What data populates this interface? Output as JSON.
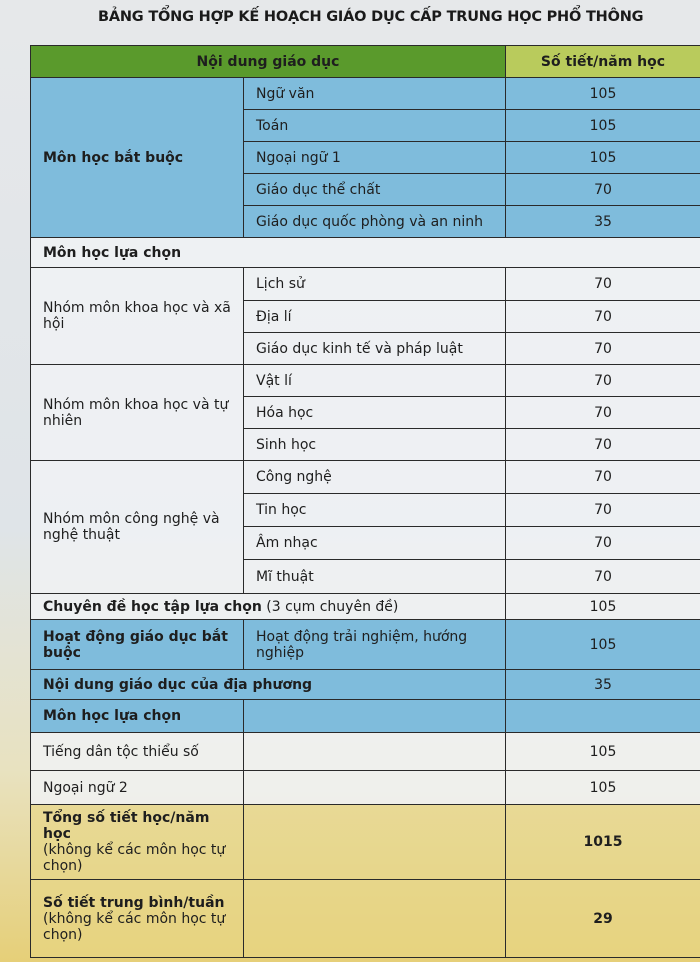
{
  "title": "BẢNG TỔNG HỢP KẾ HOẠCH GIÁO DỤC CẤP TRUNG HỌC PHỔ THÔNG",
  "header": {
    "content": "Nội dung giáo dục",
    "periods": "Số tiết/năm học"
  },
  "mandatory": {
    "label": "Môn học bắt buộc",
    "subjects": [
      {
        "name": "Ngữ văn",
        "periods": "105"
      },
      {
        "name": "Toán",
        "periods": "105"
      },
      {
        "name": "Ngoại ngữ 1",
        "periods": "105"
      },
      {
        "name": "Giáo dục thể chất",
        "periods": "70"
      },
      {
        "name": "Giáo dục quốc phòng và an ninh",
        "periods": "35"
      }
    ]
  },
  "elective": {
    "label": "Môn học lựa chọn",
    "groups": [
      {
        "label": "Nhóm môn khoa học và xã hội",
        "subjects": [
          {
            "name": "Lịch sử",
            "periods": "70"
          },
          {
            "name": "Địa lí",
            "periods": "70"
          },
          {
            "name": "Giáo dục kinh tế và pháp luật",
            "periods": "70"
          }
        ]
      },
      {
        "label": "Nhóm môn khoa học và tự nhiên",
        "subjects": [
          {
            "name": "Vật lí",
            "periods": "70"
          },
          {
            "name": "Hóa học",
            "periods": "70"
          },
          {
            "name": "Sinh học",
            "periods": "70"
          }
        ]
      },
      {
        "label": "Nhóm môn công nghệ và nghệ thuật",
        "subjects": [
          {
            "name": "Công nghệ",
            "periods": "70"
          },
          {
            "name": "Tin học",
            "periods": "70"
          },
          {
            "name": "Âm nhạc",
            "periods": "70"
          },
          {
            "name": "Mĩ thuật",
            "periods": "70"
          }
        ]
      }
    ]
  },
  "topics": {
    "label": "Chuyên đề học tập lựa chọn",
    "note": "(3 cụm chuyên đề)",
    "periods": "105"
  },
  "activities": {
    "label": "Hoạt động giáo dục bắt buộc",
    "item": "Hoạt động trải nghiệm, hướng nghiệp",
    "periods": "105"
  },
  "local": {
    "label": "Nội dung giáo dục của địa phương",
    "periods": "35"
  },
  "optional": {
    "label": "Môn học lựa chọn",
    "subjects": [
      {
        "name": "Tiếng dân tộc thiểu số",
        "periods": "105"
      },
      {
        "name": "Ngoại ngữ 2",
        "periods": "105"
      }
    ]
  },
  "total": {
    "label": "Tổng số tiết học/năm học",
    "note": "(không kể các môn học tự chọn)",
    "value": "1015"
  },
  "weekly": {
    "label": "Số tiết trung bình/tuần",
    "note": "(không kể các môn học tự chọn)",
    "value": "29"
  }
}
